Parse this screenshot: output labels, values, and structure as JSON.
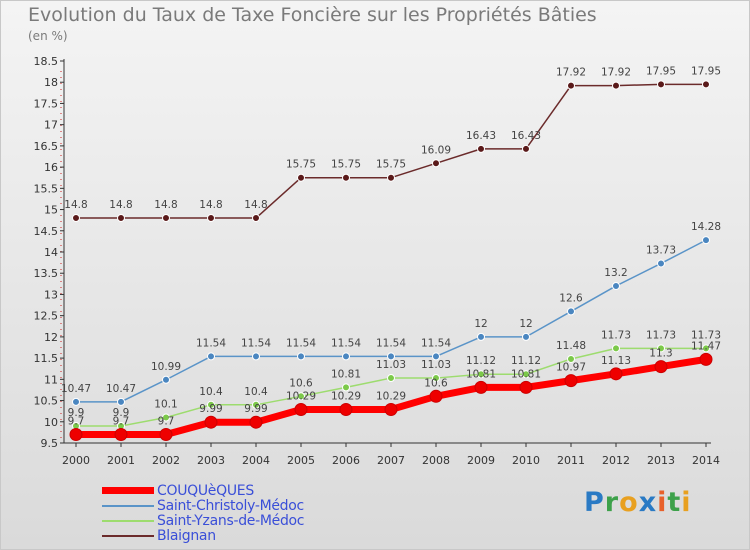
{
  "title": "Evolution du Taux de Taxe Foncière sur les Propriétés Bâties",
  "unit_label": "(en %)",
  "logo": [
    "P",
    "r",
    "o",
    "x",
    "i",
    "t",
    "i"
  ],
  "logo_colors": [
    "#2a7ac4",
    "#3da14a",
    "#e8a020",
    "#2a7ac4",
    "#e8602a",
    "#3da14a",
    "#e8a020"
  ],
  "chart_data": {
    "type": "line",
    "x": [
      2000,
      2001,
      2002,
      2003,
      2004,
      2005,
      2006,
      2007,
      2008,
      2009,
      2010,
      2011,
      2012,
      2013,
      2014
    ],
    "ylim": [
      9.5,
      18.5
    ],
    "yticks": [
      9.5,
      10,
      10.5,
      11,
      11.5,
      12,
      12.5,
      13,
      13.5,
      14,
      14.5,
      15,
      15.5,
      16,
      16.5,
      17,
      17.5,
      18,
      18.5
    ],
    "grid": false,
    "series": [
      {
        "name": "Blaignan",
        "color": "#6b2b2b",
        "point_color": "#5a1a1a",
        "values": [
          14.8,
          14.8,
          14.8,
          14.8,
          14.8,
          15.75,
          15.75,
          15.75,
          16.09,
          16.43,
          16.43,
          17.92,
          17.92,
          17.95,
          17.95
        ],
        "labels": [
          "14.8",
          "14.8",
          "14.8",
          "14.8",
          "14.8",
          "15.75",
          "15.75",
          "15.75",
          "16.09",
          "16.43",
          "16.43",
          "17.92",
          "17.92",
          "17.95",
          "17.95"
        ]
      },
      {
        "name": "Saint-Christoly-Médoc",
        "color": "#5a94c8",
        "point_color": "#4a86c0",
        "values": [
          10.47,
          10.47,
          10.99,
          11.54,
          11.54,
          11.54,
          11.54,
          11.54,
          11.54,
          12,
          12,
          12.6,
          13.2,
          13.73,
          14.28
        ],
        "labels": [
          "10.47",
          "10.47",
          "10.99",
          "11.54",
          "11.54",
          "11.54",
          "11.54",
          "11.54",
          "11.54",
          "12",
          "12",
          "12.6",
          "13.2",
          "13.73",
          "14.28"
        ]
      },
      {
        "name": "Saint-Yzans-de-Médoc",
        "color": "#9ddc6e",
        "point_color": "#7cc94a",
        "values": [
          9.9,
          9.9,
          10.1,
          10.4,
          10.4,
          10.6,
          10.81,
          11.03,
          11.03,
          11.12,
          11.12,
          11.48,
          11.73,
          11.73,
          11.73
        ],
        "labels": [
          "9.9",
          "9.9",
          "10.1",
          "10.4",
          "10.4",
          "10.6",
          "10.81",
          "11.03",
          "11.03",
          "11.12",
          "11.12",
          "11.48",
          "11.73",
          "11.73",
          "11.73"
        ]
      },
      {
        "name": "COUQUèQUES",
        "color": "#ff0000",
        "point_color": "#ee0000",
        "values": [
          9.7,
          9.7,
          9.7,
          9.99,
          9.99,
          10.29,
          10.29,
          10.29,
          10.6,
          10.81,
          10.81,
          10.97,
          11.13,
          11.3,
          11.47
        ],
        "labels": [
          "9.7",
          "9.7",
          "9.7",
          "9.99",
          "9.99",
          "10.29",
          "10.29",
          "10.29",
          "10.6",
          "10.81",
          "10.81",
          "10.97",
          "11.13",
          "11.3",
          "11.47"
        ]
      }
    ],
    "legend": {
      "position": "bottom-left",
      "entries": [
        "COUQUèQUES",
        "Saint-Christoly-Médoc",
        "Saint-Yzans-de-Médoc",
        "Blaignan"
      ]
    }
  }
}
